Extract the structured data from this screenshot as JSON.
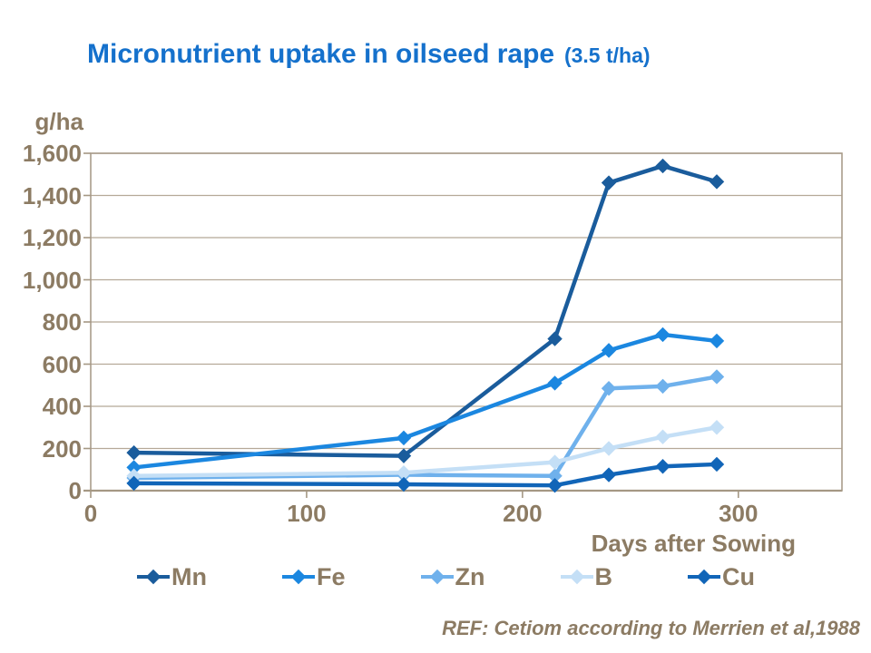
{
  "chart_data": {
    "type": "line",
    "title": "Micronutrient uptake in oilseed rape",
    "title_suffix": "(3.5 t/ha)",
    "ylabel": "g/ha",
    "xlabel": "Days after Sowing",
    "x": [
      20,
      145,
      215,
      240,
      265,
      290
    ],
    "series": [
      {
        "name": "Mn",
        "color": "#1A5C9C",
        "values": [
          180,
          165,
          720,
          1460,
          1540,
          1465
        ]
      },
      {
        "name": "Fe",
        "color": "#1B87E0",
        "values": [
          110,
          250,
          510,
          665,
          740,
          710
        ]
      },
      {
        "name": "Zn",
        "color": "#6FB1EC",
        "values": [
          60,
          75,
          70,
          485,
          495,
          540
        ]
      },
      {
        "name": "B",
        "color": "#C4DFF6",
        "values": [
          70,
          85,
          135,
          200,
          255,
          300
        ]
      },
      {
        "name": "Cu",
        "color": "#1165B8",
        "values": [
          35,
          30,
          25,
          75,
          115,
          125
        ]
      }
    ],
    "xlim": [
      0,
      348
    ],
    "ylim": [
      0,
      1600
    ],
    "x_ticks": [
      {
        "label": "0",
        "value": 0
      },
      {
        "label": "100",
        "value": 100
      },
      {
        "label": "200",
        "value": 200
      },
      {
        "label": "300",
        "value": 300
      }
    ],
    "y_ticks": [
      {
        "label": "0",
        "value": 0
      },
      {
        "label": "200",
        "value": 200
      },
      {
        "label": "400",
        "value": 400
      },
      {
        "label": "600",
        "value": 600
      },
      {
        "label": "800",
        "value": 800
      },
      {
        "label": "1,000",
        "value": 1000
      },
      {
        "label": "1,200",
        "value": 1200
      },
      {
        "label": "1,400",
        "value": 1400
      },
      {
        "label": "1,600",
        "value": 1600
      }
    ],
    "grid": "horizontal",
    "legend_position": "bottom",
    "footer": "REF: Cetiom according to Merrien et al,1988"
  },
  "colors": {
    "title_blue": "#1571CC",
    "axis_text": "#8C7B63",
    "gridline": "#B5A998",
    "axis_line": "#A59884",
    "plot_border": "#A99C8A",
    "background": "#FFFFFF"
  }
}
